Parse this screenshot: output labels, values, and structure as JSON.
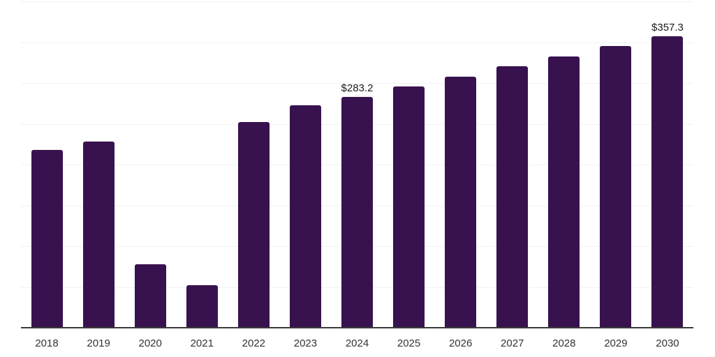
{
  "chart_data": {
    "type": "bar",
    "title": "",
    "xlabel": "",
    "ylabel": "",
    "categories": [
      "2018",
      "2019",
      "2020",
      "2021",
      "2022",
      "2023",
      "2024",
      "2025",
      "2026",
      "2027",
      "2028",
      "2029",
      "2030"
    ],
    "values": [
      218,
      228,
      78,
      52,
      252,
      272.5,
      283.2,
      295.6,
      307.9,
      320.3,
      332.6,
      345.0,
      357.3
    ],
    "data_labels": [
      {
        "category": "2024",
        "text": "$283.2"
      },
      {
        "category": "2030",
        "text": "$357.3"
      }
    ],
    "ylim": [
      0,
      400
    ],
    "grid_step": 50,
    "grid": "horizontal-only",
    "y_tick_labels_visible": false,
    "legend_position": "none"
  },
  "style": {
    "bar_color": "#38124E",
    "axis_line_color": "#3a3a3a",
    "gridline_color": "#f2f2f2",
    "data_label_color": "#1a1a1a",
    "tick_label_color": "#333333",
    "background_color": "#ffffff"
  }
}
